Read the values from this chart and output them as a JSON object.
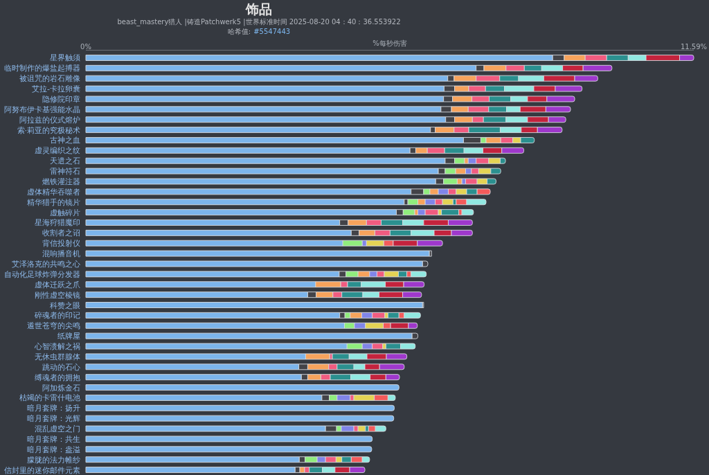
{
  "chart_data": {
    "type": "bar",
    "orientation": "horizontal",
    "stacked": true,
    "title": "饰品",
    "subtitle": "beast_mastery猎人 |铸造Patchwerk5 |世界标准时间 2025-08-20 04：40：36.553922",
    "annotations": [
      "哈希值:",
      "#5547443"
    ],
    "xlabel": "%每秒伤害",
    "xlim": [
      0,
      11.59
    ],
    "xticks": [
      {
        "value": 0,
        "label": "0%"
      },
      {
        "value": 11.59,
        "label": "11.59%"
      }
    ],
    "categories": [
      "星界触须",
      "临时制作的爆盐起搏器",
      "被诅咒的岩石雕像",
      "艾拉-卡拉卵囊",
      "隐修院印章",
      "阿努布伊卡基强能水晶",
      "阿拉兹的仪式熔炉",
      "索·莉亚的究极秘术",
      "古神之血",
      "虚灵编织之纹",
      "天遣之石",
      "雷神符石",
      "燃铁灌注器",
      "虚体精华吞噬者",
      "精华猎手的镜片",
      "虚触碎片",
      "星海狩猎魔印",
      "收割者之诏",
      "背信投射仪",
      "混响播音机",
      "艾泽洛克的共鸣之心",
      "自动化足球炸弹分发器",
      "虚体迁跃之爪",
      "刚性虚空棱镜",
      "科赞之眼",
      "碎魂者的印记",
      "遁世苍穹的尖鸣",
      "纸牌屋",
      "心智溃解之祸",
      "无休虫群腺体",
      "跳动的石心",
      "缚魂者的拥抱",
      "阿加炼金石",
      "枯竭的卡雷什电池",
      "暗月套牌：扬升",
      "暗月套牌：光辉",
      "混乱虚空之门",
      "暗月套牌：共生",
      "暗月套牌：盎溢",
      "朦胧的法力帷纱",
      "信封里的迷你邮件元素"
    ],
    "series": [
      {
        "color": "#7cb5ec",
        "values": [
          8.9,
          7.44,
          6.9,
          6.83,
          6.82,
          6.77,
          6.86,
          6.57,
          7.2,
          6.18,
          6.85,
          6.72,
          6.67,
          6.2,
          6.07,
          5.92,
          4.84,
          5.06,
          4.9,
          6.55,
          6.42,
          4.83,
          4.38,
          4.23,
          6.42,
          4.84,
          4.93,
          6.22,
          4.98,
          4.19,
          4.06,
          4.11,
          5.97,
          4.5,
          5.88,
          5.87,
          4.57,
          5.46,
          5.45,
          4.07,
          3.99
        ]
      },
      {
        "color": "#434348",
        "values": [
          0.22,
          0.15,
          0.12,
          0.2,
          0.17,
          0.2,
          0.17,
          0.09,
          0.33,
          0.11,
          0.18,
          0.13,
          0.15,
          0.24,
          0.07,
          0.13,
          0.16,
          0.15,
          null,
          0.04,
          0.1,
          0.13,
          null,
          0.16,
          0.02,
          0.1,
          null,
          0.11,
          null,
          null,
          0.17,
          0.12,
          null,
          0.14,
          null,
          null,
          0.21,
          null,
          null,
          0.11,
          0.09
        ]
      },
      {
        "color": "#90ed7d",
        "values": [
          null,
          null,
          null,
          null,
          null,
          null,
          null,
          null,
          0.1,
          null,
          0.19,
          0.2,
          0.26,
          0.12,
          0.19,
          0.22,
          null,
          null,
          0.37,
          null,
          null,
          0.23,
          null,
          null,
          null,
          0.1,
          0.19,
          null,
          0.29,
          null,
          null,
          null,
          null,
          0.15,
          null,
          null,
          0.09,
          null,
          null,
          0.23,
          null
        ]
      },
      {
        "color": "#f7a35c",
        "values": [
          0.4,
          0.42,
          0.42,
          0.27,
          0.37,
          0.32,
          0.34,
          0.36,
          0.28,
          0.22,
          0.07,
          0.19,
          0.09,
          0.16,
          0.14,
          0.06,
          0.35,
          0.3,
          null,
          null,
          null,
          0.22,
          0.48,
          0.32,
          null,
          0.22,
          null,
          null,
          null,
          0.46,
          0.4,
          0.25,
          null,
          null,
          null,
          null,
          null,
          null,
          null,
          null,
          0.09
        ]
      },
      {
        "color": "#8085e9",
        "values": [
          null,
          null,
          null,
          null,
          null,
          null,
          null,
          null,
          null,
          null,
          0.15,
          0.11,
          0.07,
          0.19,
          0.19,
          0.14,
          null,
          null,
          0.08,
          null,
          null,
          0.14,
          null,
          null,
          null,
          0.2,
          0.21,
          null,
          0.19,
          null,
          null,
          null,
          null,
          0.25,
          null,
          null,
          0.24,
          null,
          null,
          0.16,
          null
        ]
      },
      {
        "color": "#f15c80",
        "values": [
          0.41,
          0.35,
          0.45,
          0.32,
          0.33,
          0.39,
          0.21,
          0.28,
          0.23,
          0.33,
          0.24,
          0.14,
          0.22,
          0.15,
          0.14,
          0.25,
          0.28,
          0.29,
          null,
          null,
          null,
          0.14,
          0.13,
          0.17,
          null,
          0.24,
          null,
          null,
          0.2,
          0.05,
          0.16,
          0.18,
          null,
          0.07,
          null,
          null,
          0.08,
          null,
          null,
          0.2,
          0.09
        ]
      },
      {
        "color": "#e4d354",
        "values": [
          null,
          null,
          null,
          null,
          null,
          null,
          null,
          null,
          0.15,
          null,
          0.22,
          0.23,
          0.19,
          0.2,
          0.2,
          0.06,
          null,
          null,
          0.33,
          null,
          null,
          0.27,
          null,
          null,
          null,
          0.06,
          0.34,
          null,
          0.06,
          null,
          null,
          null,
          null,
          0.39,
          null,
          null,
          0.14,
          null,
          null,
          0.11,
          null
        ]
      },
      {
        "color": "#2b908f",
        "values": [
          0.41,
          0.33,
          0.36,
          0.36,
          0.41,
          0.34,
          0.43,
          0.6,
          0.26,
          0.37,
          0.1,
          0.19,
          0.17,
          0.2,
          0.06,
          0.33,
          0.41,
          0.4,
          null,
          null,
          null,
          0.16,
          0.26,
          0.4,
          null,
          0.21,
          null,
          null,
          0.28,
          0.32,
          0.32,
          0.39,
          null,
          null,
          null,
          null,
          0.06,
          null,
          null,
          0.18,
          0.25
        ]
      },
      {
        "color": "#f45b5b",
        "values": [
          null,
          null,
          null,
          null,
          null,
          null,
          null,
          null,
          null,
          null,
          null,
          null,
          null,
          0.25,
          0.2,
          0.06,
          null,
          null,
          0.18,
          null,
          null,
          0.08,
          null,
          null,
          null,
          0.1,
          0.14,
          null,
          null,
          null,
          null,
          null,
          null,
          0.26,
          null,
          null,
          0.13,
          null,
          null,
          0.21,
          null
        ]
      },
      {
        "color": "#91e8e1",
        "values": [
          0.34,
          0.4,
          0.48,
          0.56,
          0.32,
          0.26,
          0.41,
          0.4,
          null,
          0.36,
          null,
          null,
          null,
          null,
          0.37,
          0.22,
          0.4,
          0.44,
          null,
          null,
          null,
          0.29,
          0.46,
          0.31,
          null,
          0.31,
          null,
          null,
          0.28,
          0.34,
          0.21,
          0.37,
          null,
          0.14,
          null,
          null,
          0.2,
          null,
          null,
          0.14,
          0.24
        ]
      },
      {
        "color": "#c4233d",
        "values": [
          0.64,
          0.39,
          0.59,
          0.41,
          0.37,
          0.49,
          0.4,
          0.31,
          null,
          0.36,
          null,
          null,
          null,
          null,
          null,
          null,
          0.47,
          0.33,
          0.46,
          null,
          null,
          null,
          0.35,
          0.45,
          null,
          null,
          0.34,
          null,
          null,
          0.37,
          0.28,
          0.3,
          null,
          null,
          null,
          null,
          null,
          null,
          null,
          null,
          0.28
        ]
      },
      {
        "color": "#9f38cc",
        "values": [
          0.27,
          0.55,
          0.44,
          0.51,
          0.53,
          0.47,
          0.33,
          0.47,
          null,
          0.42,
          null,
          null,
          null,
          null,
          null,
          null,
          0.46,
          0.4,
          0.48,
          null,
          null,
          null,
          0.39,
          0.36,
          null,
          null,
          0.17,
          null,
          null,
          0.39,
          0.47,
          0.26,
          null,
          null,
          null,
          null,
          null,
          null,
          null,
          null,
          0.29
        ]
      }
    ]
  }
}
